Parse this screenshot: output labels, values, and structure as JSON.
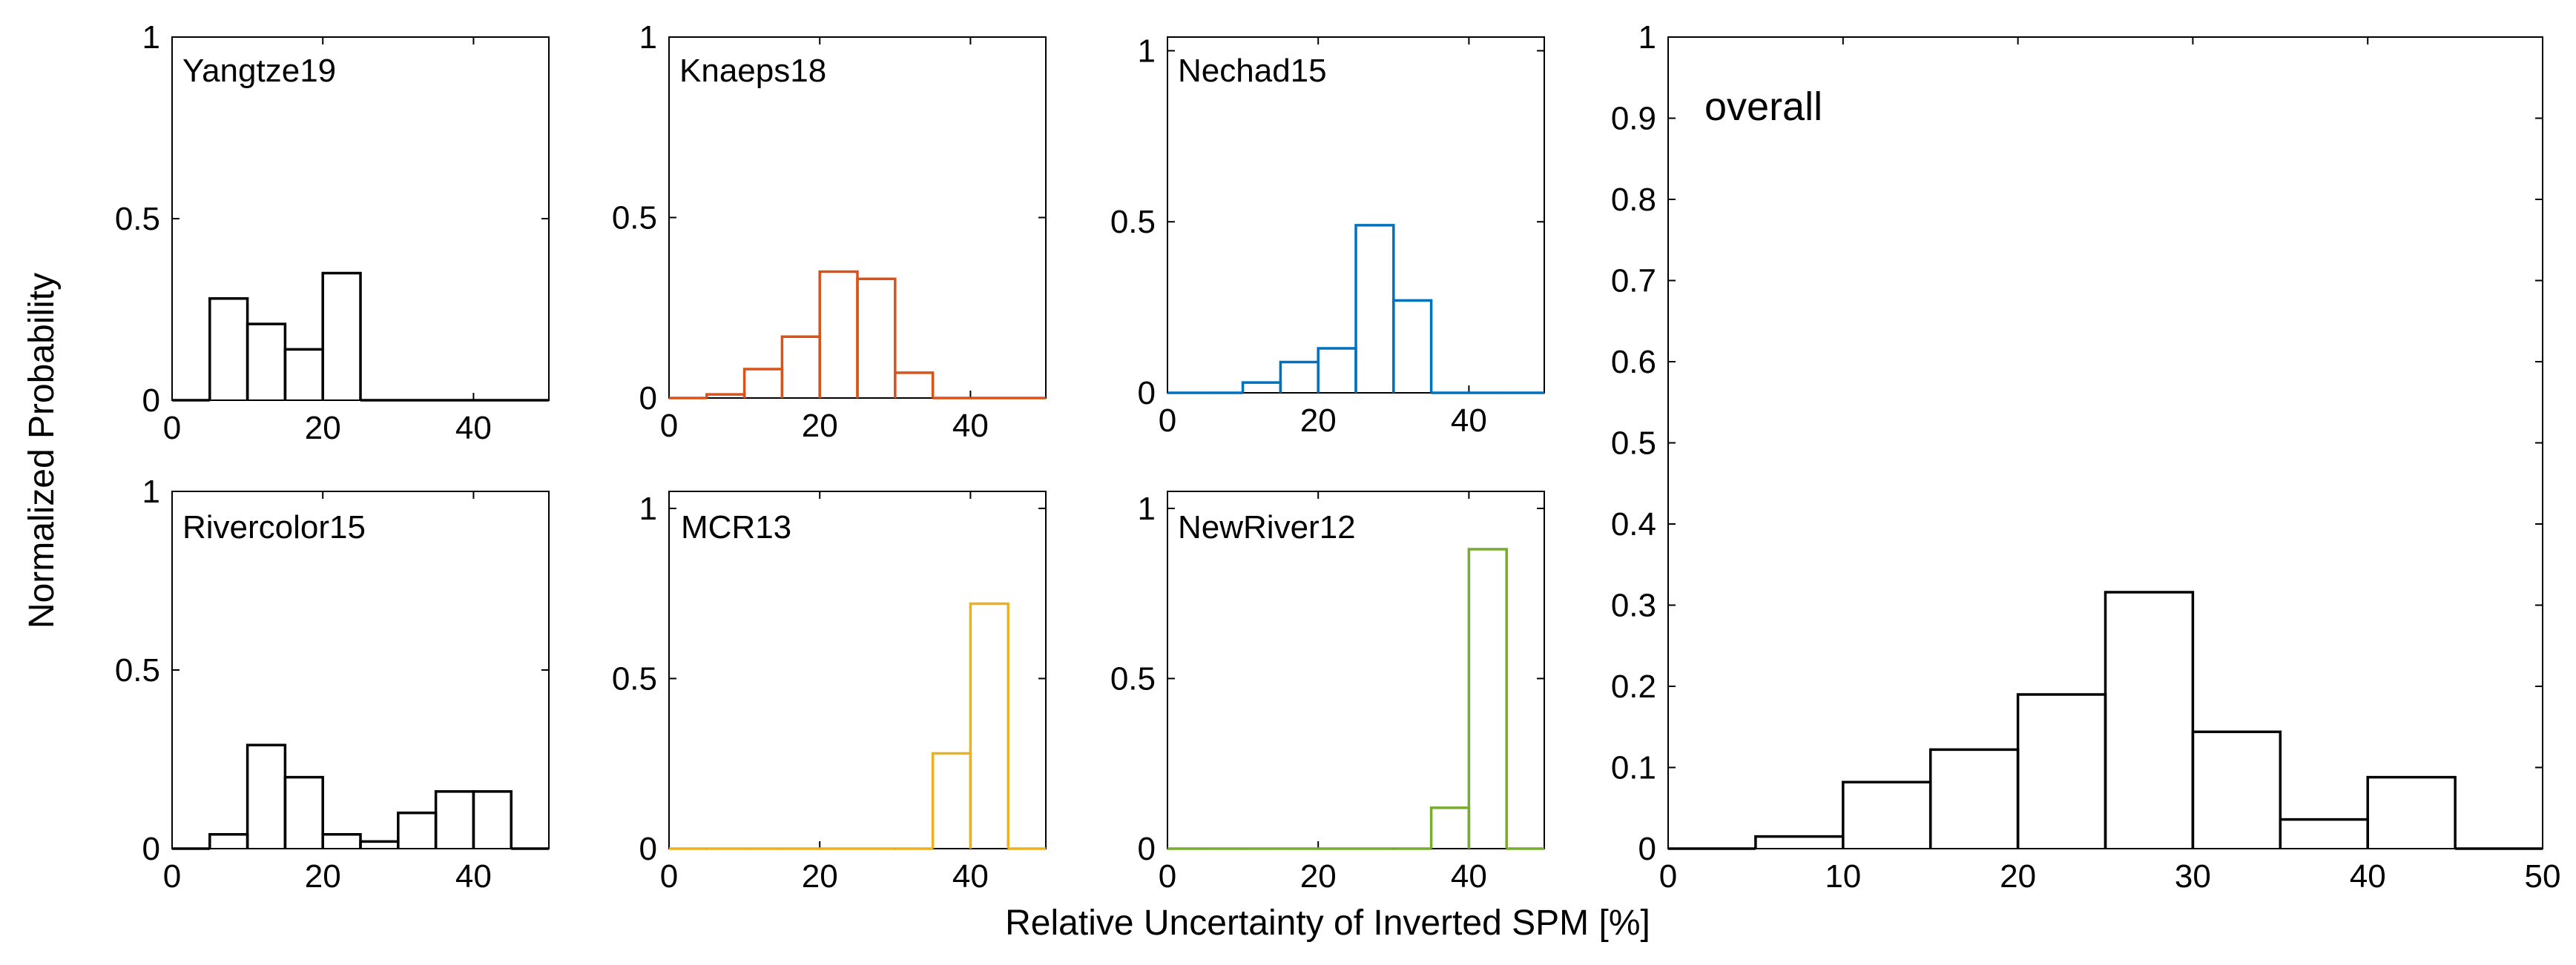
{
  "figure": {
    "ylabel": "Normalized Probability",
    "xlabel": "Relative Uncertainty of Inverted SPM [%]"
  },
  "chart_data": [
    {
      "type": "histogram",
      "title": "Yangtze19",
      "color": "#000000",
      "bin_edges": [
        0,
        5,
        10,
        15,
        20,
        25,
        30,
        35,
        40,
        45,
        50
      ],
      "values": [
        0,
        0.28,
        0.21,
        0.14,
        0.35,
        0,
        0,
        0,
        0,
        0
      ],
      "xlim": [
        0,
        50
      ],
      "ylim": [
        0,
        1
      ],
      "xticks": [
        0,
        20,
        40
      ],
      "yticks": [
        0,
        0.5,
        1
      ],
      "ytick_labels": [
        "0",
        "0.5",
        "1"
      ]
    },
    {
      "type": "histogram",
      "title": "Knaeps18",
      "color": "#D95319",
      "bin_edges": [
        0,
        5,
        10,
        15,
        20,
        25,
        30,
        35,
        40,
        45,
        50
      ],
      "values": [
        0,
        0.01,
        0.08,
        0.17,
        0.35,
        0.33,
        0.07,
        0,
        0,
        0
      ],
      "xlim": [
        0,
        50
      ],
      "ylim": [
        0,
        1
      ],
      "xticks": [
        0,
        20,
        40
      ],
      "yticks": [
        0,
        0.5,
        1
      ],
      "ytick_labels": [
        "0",
        "0.5",
        "1"
      ]
    },
    {
      "type": "histogram",
      "title": "Nechad15",
      "color": "#0072BD",
      "bin_edges": [
        0,
        5,
        10,
        15,
        20,
        25,
        30,
        35,
        40,
        45,
        50
      ],
      "values": [
        0,
        0,
        0.03,
        0.09,
        0.13,
        0.49,
        0.27,
        0,
        0,
        0
      ],
      "xlim": [
        0,
        50
      ],
      "ylim": [
        0,
        1.04
      ],
      "xticks": [
        0,
        20,
        40
      ],
      "yticks": [
        0,
        0.5,
        1
      ],
      "ytick_labels": [
        "0",
        "0.5",
        "1"
      ]
    },
    {
      "type": "histogram",
      "title": "Rivercolor15",
      "color": "#000000",
      "bin_edges": [
        0,
        5,
        10,
        15,
        20,
        25,
        30,
        35,
        40,
        45,
        50
      ],
      "values": [
        0,
        0.04,
        0.29,
        0.2,
        0.04,
        0.02,
        0.1,
        0.16,
        0.16,
        0
      ],
      "xlim": [
        0,
        50
      ],
      "ylim": [
        0,
        1
      ],
      "xticks": [
        0,
        20,
        40
      ],
      "yticks": [
        0,
        0.5,
        1
      ],
      "ytick_labels": [
        "0",
        "0.5",
        "1"
      ]
    },
    {
      "type": "histogram",
      "title": "MCR13",
      "color": "#EDB120",
      "bin_edges": [
        0,
        5,
        10,
        15,
        20,
        25,
        30,
        35,
        40,
        45,
        50
      ],
      "values": [
        0,
        0,
        0,
        0,
        0,
        0,
        0,
        0.28,
        0.72,
        0
      ],
      "xlim": [
        0,
        50
      ],
      "ylim": [
        0,
        1.05
      ],
      "xticks": [
        0,
        20,
        40
      ],
      "yticks": [
        0,
        0.5,
        1
      ],
      "ytick_labels": [
        "0",
        "0.5",
        "1"
      ]
    },
    {
      "type": "histogram",
      "title": "NewRiver12",
      "color": "#77AC30",
      "bin_edges": [
        0,
        5,
        10,
        15,
        20,
        25,
        30,
        35,
        40,
        45,
        50
      ],
      "values": [
        0,
        0,
        0,
        0,
        0,
        0,
        0,
        0.12,
        0.88,
        0
      ],
      "xlim": [
        0,
        50
      ],
      "ylim": [
        0,
        1.05
      ],
      "xticks": [
        0,
        20,
        40
      ],
      "yticks": [
        0,
        0.5,
        1
      ],
      "ytick_labels": [
        "0",
        "0.5",
        "1"
      ]
    },
    {
      "type": "histogram",
      "title": "overall",
      "color": "#000000",
      "bin_edges": [
        0,
        5,
        10,
        15,
        20,
        25,
        30,
        35,
        40,
        45,
        50
      ],
      "values": [
        0,
        0.015,
        0.082,
        0.122,
        0.19,
        0.316,
        0.144,
        0.036,
        0.088,
        0
      ],
      "xlim": [
        0,
        50
      ],
      "ylim": [
        0,
        1
      ],
      "xticks": [
        0,
        10,
        20,
        30,
        40,
        50
      ],
      "yticks": [
        0,
        0.1,
        0.2,
        0.3,
        0.4,
        0.5,
        0.6,
        0.7,
        0.8,
        0.9,
        1
      ],
      "ytick_labels": [
        "0",
        "0.1",
        "0.2",
        "0.3",
        "0.4",
        "0.5",
        "0.6",
        "0.7",
        "0.8",
        "0.9",
        "1"
      ]
    }
  ]
}
